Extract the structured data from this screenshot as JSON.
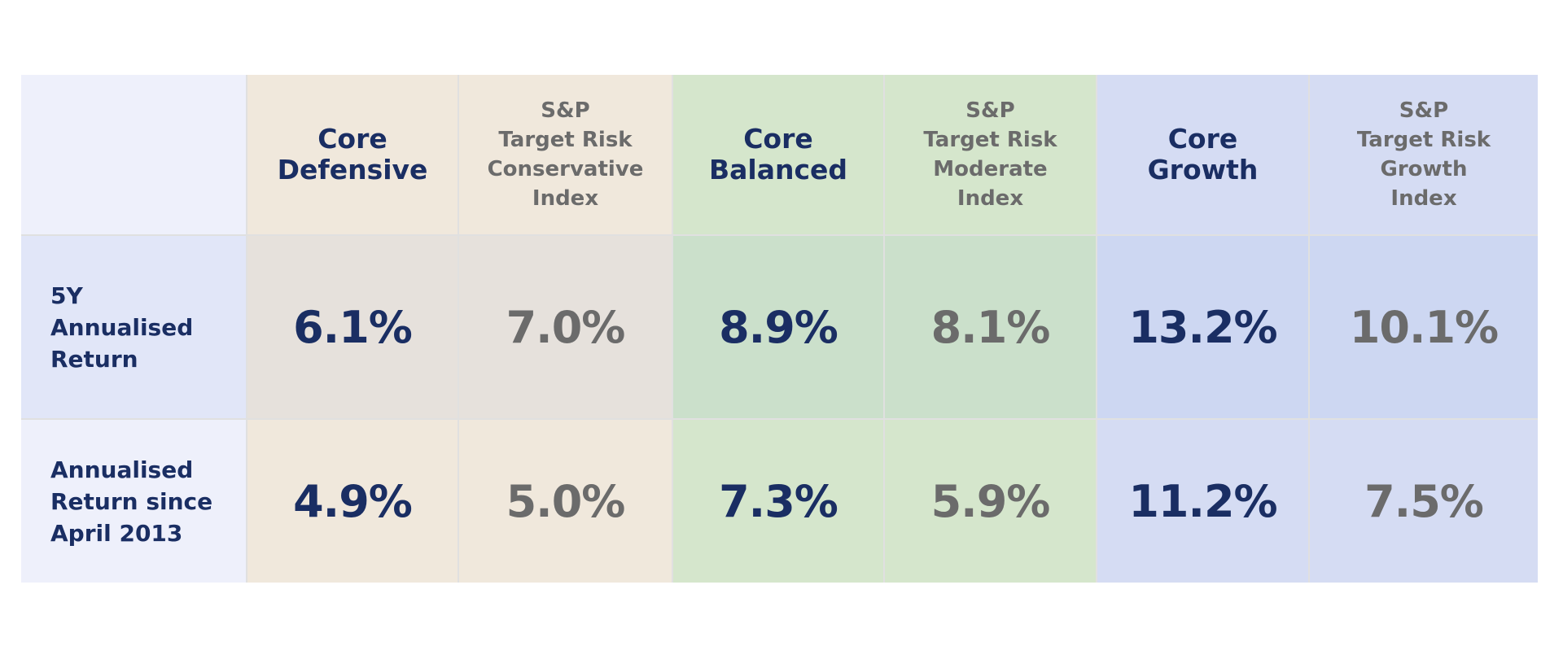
{
  "table": {
    "headers": [
      "Core\nDefensive",
      "S&P\nTarget Risk\nConservative\nIndex",
      "Core\nBalanced",
      "S&P\nTarget Risk\nModerate\nIndex",
      "Core\nGrowth",
      "S&P\nTarget Risk\nGrowth\nIndex"
    ],
    "rows": [
      {
        "label": "5Y\nAnnualised\nReturn",
        "values": [
          "6.1%",
          "7.0%",
          "8.9%",
          "8.1%",
          "13.2%",
          "10.1%"
        ]
      },
      {
        "label": "Annualised\nReturn since\nApril 2013",
        "values": [
          "4.9%",
          "5.0%",
          "7.3%",
          "5.9%",
          "11.2%",
          "7.5%"
        ]
      }
    ]
  }
}
